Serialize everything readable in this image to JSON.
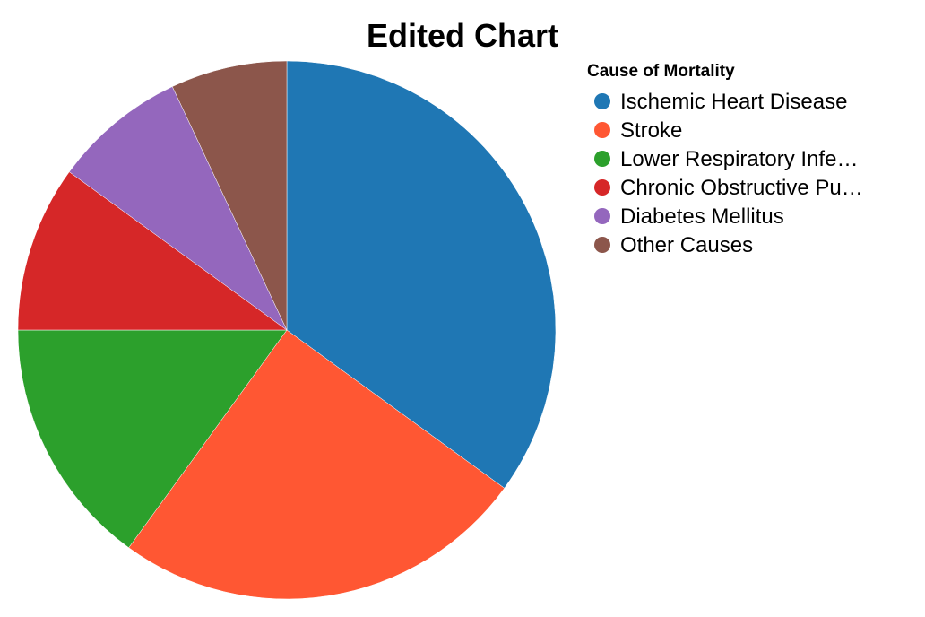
{
  "chart_data": {
    "type": "pie",
    "title": "Edited Chart",
    "legend": {
      "title": "Cause of Mortality",
      "position": "right"
    },
    "categories": [
      "Ischemic Heart Disease",
      "Stroke",
      "Lower Respiratory Infe…",
      "Chronic Obstructive Pu…",
      "Diabetes Mellitus",
      "Other Causes"
    ],
    "values": [
      35,
      25,
      15,
      10,
      8,
      7
    ],
    "colors": [
      "#1f77b4",
      "#ff5733",
      "#2ca02c",
      "#d62728",
      "#9467bd",
      "#8c564b"
    ]
  }
}
